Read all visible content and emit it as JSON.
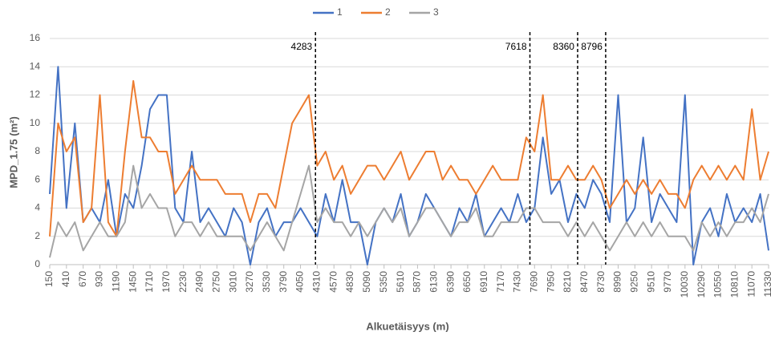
{
  "chart_data": {
    "type": "line",
    "ylabel": "MPD_1.75 (m²)",
    "xlabel": "Alkuetäisyys (m)",
    "x": [
      150,
      280,
      410,
      540,
      670,
      800,
      930,
      1060,
      1190,
      1320,
      1450,
      1580,
      1710,
      1840,
      1970,
      2100,
      2230,
      2360,
      2490,
      2620,
      2750,
      2880,
      3010,
      3140,
      3270,
      3400,
      3530,
      3660,
      3790,
      3920,
      4050,
      4180,
      4310,
      4440,
      4570,
      4700,
      4830,
      4960,
      5090,
      5220,
      5350,
      5480,
      5610,
      5740,
      5870,
      6000,
      6130,
      6260,
      6390,
      6520,
      6650,
      6780,
      6910,
      7040,
      7170,
      7300,
      7430,
      7560,
      7690,
      7820,
      7950,
      8080,
      8210,
      8340,
      8470,
      8600,
      8730,
      8860,
      8990,
      9120,
      9250,
      9380,
      9510,
      9640,
      9770,
      9900,
      10030,
      10160,
      10290,
      10420,
      10550,
      10680,
      10810,
      10940,
      11070,
      11200,
      11330
    ],
    "series": [
      {
        "name": "1",
        "color": "#4472c4",
        "values": [
          5,
          14,
          4,
          10,
          3,
          4,
          3,
          6,
          2,
          5,
          4,
          7,
          11,
          12,
          12,
          4,
          3,
          8,
          3,
          4,
          3,
          2,
          4,
          3,
          0,
          3,
          4,
          2,
          3,
          3,
          4,
          3,
          2,
          5,
          3,
          6,
          3,
          3,
          0,
          3,
          4,
          3,
          5,
          2,
          3,
          5,
          4,
          3,
          2,
          4,
          3,
          5,
          2,
          3,
          4,
          3,
          5,
          3,
          4,
          9,
          5,
          6,
          3,
          5,
          4,
          6,
          5,
          3,
          12,
          3,
          4,
          9,
          3,
          5,
          4,
          3,
          12,
          0,
          3,
          4,
          2,
          5,
          3,
          4,
          3,
          5,
          1
        ]
      },
      {
        "name": "2",
        "color": "#ed7d31",
        "values": [
          2,
          10,
          8,
          9,
          3,
          4,
          12,
          3,
          2,
          8,
          13,
          9,
          9,
          8,
          8,
          5,
          6,
          7,
          6,
          6,
          6,
          5,
          5,
          5,
          3,
          5,
          5,
          4,
          7,
          10,
          11,
          12,
          7,
          8,
          6,
          7,
          5,
          6,
          7,
          7,
          6,
          7,
          8,
          6,
          7,
          8,
          8,
          6,
          7,
          6,
          6,
          5,
          6,
          7,
          6,
          6,
          6,
          9,
          8,
          12,
          6,
          6,
          7,
          6,
          6,
          7,
          6,
          4,
          5,
          6,
          5,
          6,
          5,
          6,
          5,
          5,
          4,
          6,
          7,
          6,
          7,
          6,
          7,
          6,
          11,
          6,
          8
        ]
      },
      {
        "name": "3",
        "color": "#a5a5a5",
        "values": [
          0.5,
          3,
          2,
          3,
          1,
          2,
          3,
          2,
          2,
          3,
          7,
          4,
          5,
          4,
          4,
          2,
          3,
          3,
          2,
          3,
          2,
          2,
          2,
          2,
          1,
          2,
          3,
          2,
          1,
          3,
          5,
          7,
          3,
          4,
          3,
          3,
          2,
          3,
          2,
          3,
          4,
          3,
          4,
          2,
          3,
          4,
          4,
          3,
          2,
          3,
          3,
          4,
          2,
          2,
          3,
          3,
          3,
          4,
          4,
          3,
          3,
          3,
          2,
          3,
          2,
          3,
          2,
          1,
          2,
          3,
          2,
          3,
          2,
          3,
          2,
          2,
          2,
          1,
          3,
          2,
          3,
          2,
          3,
          3,
          4,
          3,
          5
        ]
      }
    ],
    "xlim": [
      150,
      11330
    ],
    "xticks": [
      150,
      410,
      670,
      930,
      1190,
      1450,
      1710,
      1970,
      2230,
      2490,
      2750,
      3010,
      3270,
      3530,
      3790,
      4050,
      4310,
      4570,
      4830,
      5090,
      5350,
      5610,
      5870,
      6130,
      6390,
      6650,
      6910,
      7170,
      7430,
      7690,
      7950,
      8210,
      8470,
      8730,
      8990,
      9250,
      9510,
      9770,
      10030,
      10290,
      10550,
      10810,
      11070,
      11330
    ],
    "ylim": [
      0,
      16
    ],
    "yticks": [
      0,
      2,
      4,
      6,
      8,
      10,
      12,
      14,
      16
    ],
    "grid": true,
    "vlines": [
      4283,
      7618,
      8360,
      8796
    ],
    "legend": "top"
  }
}
